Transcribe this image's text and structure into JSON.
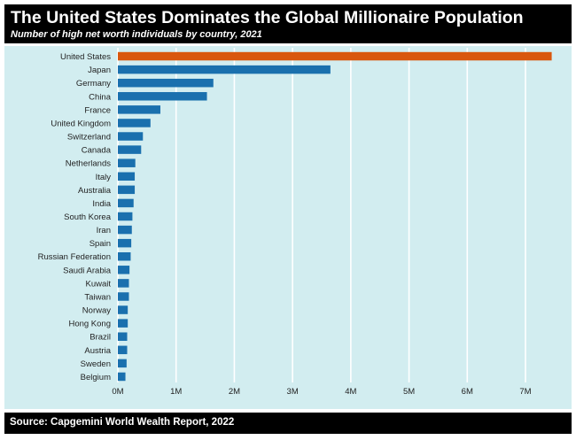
{
  "header": {
    "title": "The United States Dominates the Global Millionaire Population",
    "subtitle": "Number of high net worth individuals by country, 2021"
  },
  "footer": {
    "source": "Source: Capgemini World Wealth Report, 2022"
  },
  "chart_data": {
    "type": "bar",
    "orientation": "horizontal",
    "title": "The United States Dominates the Global Millionaire Population",
    "subtitle": "Number of high net worth individuals by country, 2021",
    "xlabel": "",
    "ylabel": "",
    "categories": [
      "United States",
      "Japan",
      "Germany",
      "China",
      "France",
      "United Kingdom",
      "Switzerland",
      "Canada",
      "Netherlands",
      "Italy",
      "Australia",
      "India",
      "South Korea",
      "Iran",
      "Spain",
      "Russian Federation",
      "Saudi Arabia",
      "Kuwait",
      "Taiwan",
      "Norway",
      "Hong Kong",
      "Brazil",
      "Austria",
      "Sweden",
      "Belgium"
    ],
    "values": [
      7450000,
      3650000,
      1640000,
      1530000,
      730000,
      560000,
      430000,
      400000,
      300000,
      290000,
      290000,
      270000,
      250000,
      240000,
      230000,
      220000,
      200000,
      190000,
      190000,
      170000,
      170000,
      160000,
      160000,
      150000,
      130000
    ],
    "xlim": [
      0,
      7700000
    ],
    "xticks": [
      0,
      1000000,
      2000000,
      3000000,
      4000000,
      5000000,
      6000000,
      7000000
    ],
    "xtick_labels": [
      "0M",
      "1M",
      "2M",
      "3M",
      "4M",
      "5M",
      "6M",
      "7M"
    ],
    "grid": "vertical",
    "colors": {
      "highlight": "#d9570d",
      "default": "#1a70ae",
      "background": "#d2edf0",
      "grid": "#ffffff"
    }
  }
}
